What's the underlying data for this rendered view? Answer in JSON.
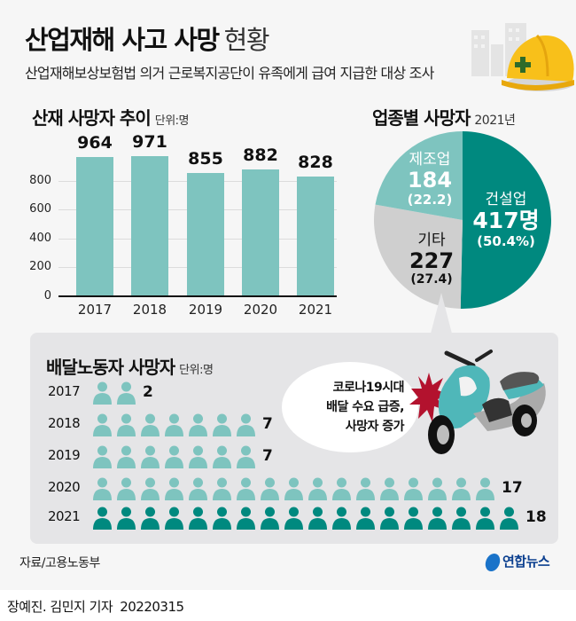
{
  "header": {
    "title_bold": "산업재해 사고 사망",
    "title_light": "현황",
    "subtitle": "산업재해보상보험법 의거 근로복지공단이 유족에게 급여 지급한 대상 조사"
  },
  "colors": {
    "light_teal": "#7ec4bf",
    "dark_teal": "#00897f",
    "gray": "#cfcfcf",
    "panel_bg": "#e5e5e7",
    "starburst": "#b3122e"
  },
  "bar_section": {
    "title": "산재 사망자 추이",
    "unit": "단위:명"
  },
  "pie_section": {
    "title": "업종별 사망자",
    "year": "2021년",
    "slices": [
      {
        "name": "건설업",
        "value": "417명",
        "share": "(50.4%)"
      },
      {
        "name": "제조업",
        "value": "184",
        "share": "(22.2)"
      },
      {
        "name": "기타",
        "value": "227",
        "share": "(27.4)"
      }
    ]
  },
  "delivery_section": {
    "title": "배달노동자 사망자",
    "unit": "단위:명",
    "rows": [
      {
        "year": "2017",
        "count": "2"
      },
      {
        "year": "2018",
        "count": "7"
      },
      {
        "year": "2019",
        "count": "7"
      },
      {
        "year": "2020",
        "count": "17"
      },
      {
        "year": "2021",
        "count": "18"
      }
    ],
    "callout": {
      "line1": "코로나19시대",
      "line2": "배달 수요 급증,",
      "line3": "사망자 증가"
    }
  },
  "footer": {
    "source": "자료/고용노동부",
    "logo": "연합뉴스",
    "credit": "장예진. 김민지 기자",
    "date": "20220315"
  },
  "chart_data": [
    {
      "type": "bar",
      "title": "산재 사망자 추이",
      "unit": "단위:명",
      "categories": [
        "2017",
        "2018",
        "2019",
        "2020",
        "2021"
      ],
      "values": [
        964,
        971,
        855,
        882,
        828
      ],
      "yticks": [
        "0",
        "200",
        "400",
        "600",
        "800"
      ],
      "ylim": [
        0,
        1000
      ],
      "grid": true,
      "xlabel": "",
      "ylabel": ""
    },
    {
      "type": "pie",
      "title": "업종별 사망자 2021년",
      "categories": [
        "건설업",
        "제조업",
        "기타"
      ],
      "values": [
        417,
        184,
        227
      ],
      "percent": [
        50.4,
        22.2,
        27.4
      ]
    },
    {
      "type": "bar",
      "title": "배달노동자 사망자",
      "unit": "단위:명",
      "orientation": "horizontal-pictogram",
      "categories": [
        "2017",
        "2018",
        "2019",
        "2020",
        "2021"
      ],
      "values": [
        2,
        7,
        7,
        17,
        18
      ]
    }
  ]
}
